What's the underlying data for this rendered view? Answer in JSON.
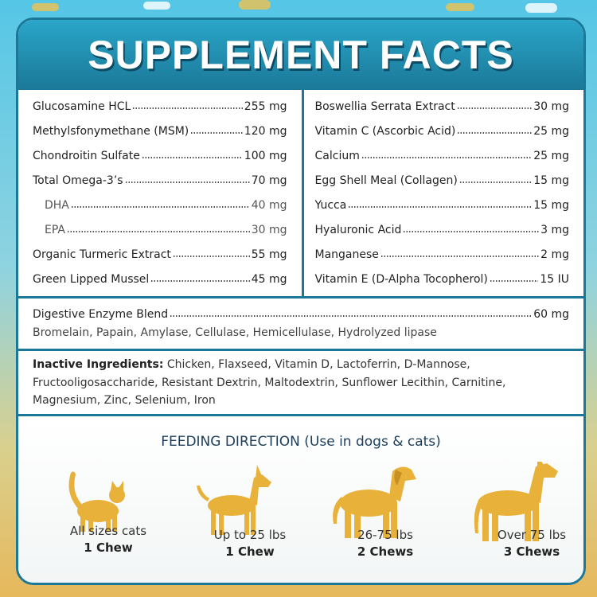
{
  "title": "SUPPLEMENT FACTS",
  "left": [
    {
      "name": "Glucosamine HCL",
      "amount": "255 mg"
    },
    {
      "name": "Methylsfonymethane (MSM)",
      "amount": "120 mg"
    },
    {
      "name": "Chondroitin Sulfate",
      "amount": "100 mg"
    },
    {
      "name": "Total Omega-3’s",
      "amount": "70 mg",
      "sub": [
        {
          "name": "DHA",
          "amount": "40 mg"
        },
        {
          "name": "EPA",
          "amount": "30 mg"
        }
      ]
    },
    {
      "name": "Organic Turmeric Extract",
      "amount": "55 mg"
    },
    {
      "name": "Green Lipped Mussel",
      "amount": "45 mg"
    }
  ],
  "right": [
    {
      "name": "Boswellia Serrata Extract",
      "amount": "30 mg"
    },
    {
      "name": "Vitamin C (Ascorbic Acid)",
      "amount": "25 mg"
    },
    {
      "name": "Calcium",
      "amount": "25 mg"
    },
    {
      "name": "Egg Shell Meal (Collagen)",
      "amount": "15 mg"
    },
    {
      "name": "Yucca",
      "amount": "15 mg"
    },
    {
      "name": "Hyaluronic Acid",
      "amount": "3 mg"
    },
    {
      "name": "Manganese",
      "amount": "2 mg"
    },
    {
      "name": "Vitamin E (D-Alpha Tocopherol)",
      "amount": "15 IU"
    }
  ],
  "blend": {
    "name": "Digestive Enzyme Blend",
    "amount": "60 mg",
    "detail": "Bromelain, Papain, Amylase, Cellulase, Hemicellulase, Hydrolyzed lipase"
  },
  "inactive": {
    "label": "Inactive Ingredients:",
    "text": "Chicken, Flaxseed, Vitamin D, Lactoferrin, D-Mannose, Fructooligosaccharide, Resistant Dextrin, Maltodextrin, Sunflower Lecithin, Carnitine, Magnesium, Zinc, Selenium, Iron"
  },
  "feeding": {
    "title": "FEEDING DIRECTION (Use in dogs & cats)",
    "items": [
      {
        "animal": "All sizes cats",
        "dose": "1 Chew"
      },
      {
        "animal": "Up to 25 lbs",
        "dose": "1 Chew"
      },
      {
        "animal": "26-75 lbs",
        "dose": "2 Chews"
      },
      {
        "animal": "Over 75 lbs",
        "dose": "3 Chews"
      }
    ]
  }
}
